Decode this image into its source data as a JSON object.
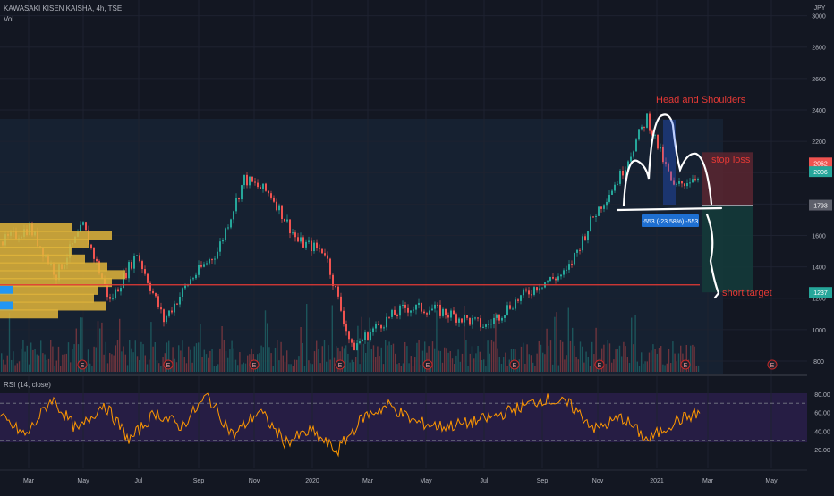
{
  "header": {
    "symbol_line": "KAWASAKI KISEN KAISHA, 4h, TSE",
    "volume_label": "Vol",
    "currency": "JPY",
    "rsi_label": "RSI (14, close)"
  },
  "colors": {
    "background": "#131722",
    "grid": "#1e2230",
    "candle_up": "#26a69a",
    "candle_down": "#ef5350",
    "vol_profile": "#e2b53b",
    "vol_profile_blue": "#2196f3",
    "support_line": "#e53935",
    "annotation_text": "#e53935",
    "rsi_line": "#ff9800",
    "rsi_band": "#2a1f4a",
    "text": "#b2b5be"
  },
  "price_axis": {
    "ticks": [
      "3000",
      "2800",
      "2600",
      "2400",
      "2200",
      "2000",
      "1800",
      "1600",
      "1400",
      "1200",
      "1000",
      "800"
    ],
    "min": 720,
    "max": 3100
  },
  "price_labels": [
    {
      "text": "2062",
      "value": 2062,
      "color": "#ef5350"
    },
    {
      "text": "2006",
      "value": 2006,
      "color": "#26a69a"
    },
    {
      "text": "1793",
      "value": 1793,
      "color": "#5d606b"
    },
    {
      "text": "1237",
      "value": 1237,
      "color": "#26a69a"
    }
  ],
  "rsi_axis": {
    "ticks": [
      "80.00",
      "60.00",
      "40.00",
      "20.00"
    ],
    "upper_band": 70,
    "lower_band": 30
  },
  "time_axis": [
    "Mar",
    "May",
    "Jul",
    "Sep",
    "Nov",
    "2020",
    "Mar",
    "May",
    "Jul",
    "Sep",
    "Nov",
    "2021",
    "Mar",
    "May"
  ],
  "annotations": {
    "head_and_shoulders": "Head and Shoulders",
    "stop_loss": "stop loss",
    "short_target": "short target",
    "measure_label": "-553 (-23.58%) -553"
  },
  "earnings_marker": "E",
  "chart_data": {
    "type": "candlestick",
    "title": "KAWASAKI KISEN KAISHA, 4h, TSE",
    "ylabel": "JPY",
    "ylim": [
      720,
      3100
    ],
    "support_level": 1285,
    "neckline": 1793,
    "stop_loss": 2062,
    "entry": 1793,
    "short_target": 1237,
    "price_path": [
      {
        "x": "2019-02",
        "y": 1560
      },
      {
        "x": "2019-03",
        "y": 1650
      },
      {
        "x": "2019-04",
        "y": 1350
      },
      {
        "x": "2019-05",
        "y": 1660
      },
      {
        "x": "2019-06",
        "y": 1180
      },
      {
        "x": "2019-07",
        "y": 1490
      },
      {
        "x": "2019-08",
        "y": 1060
      },
      {
        "x": "2019-09",
        "y": 1320
      },
      {
        "x": "2019-10",
        "y": 1500
      },
      {
        "x": "2019-11",
        "y": 1960
      },
      {
        "x": "2019-12",
        "y": 1860
      },
      {
        "x": "2020-01",
        "y": 1560
      },
      {
        "x": "2020-02",
        "y": 1500
      },
      {
        "x": "2020-03",
        "y": 880
      },
      {
        "x": "2020-04",
        "y": 1030
      },
      {
        "x": "2020-05",
        "y": 1140
      },
      {
        "x": "2020-06",
        "y": 1130
      },
      {
        "x": "2020-07",
        "y": 1080
      },
      {
        "x": "2020-08",
        "y": 1020
      },
      {
        "x": "2020-09",
        "y": 1170
      },
      {
        "x": "2020-10",
        "y": 1290
      },
      {
        "x": "2020-11",
        "y": 1360
      },
      {
        "x": "2020-12",
        "y": 1720
      },
      {
        "x": "2021-01",
        "y": 1980
      },
      {
        "x": "2021-01b",
        "y": 2350
      },
      {
        "x": "2021-02",
        "y": 1900
      },
      {
        "x": "2021-02b",
        "y": 2000
      }
    ],
    "volume_profile_bins": [
      {
        "price": 1650,
        "volume": 80
      },
      {
        "price": 1600,
        "volume": 125
      },
      {
        "price": 1550,
        "volume": 100
      },
      {
        "price": 1500,
        "volume": 80
      },
      {
        "price": 1450,
        "volume": 95
      },
      {
        "price": 1400,
        "volume": 120
      },
      {
        "price": 1350,
        "volume": 140
      },
      {
        "price": 1300,
        "volume": 125
      },
      {
        "price": 1250,
        "volume": 110
      },
      {
        "price": 1200,
        "volume": 105
      },
      {
        "price": 1150,
        "volume": 118
      },
      {
        "price": 1100,
        "volume": 65
      }
    ],
    "rsi": {
      "name": "RSI (14, close)",
      "ylim": [
        0,
        100
      ],
      "values": [
        55,
        35,
        75,
        40,
        70,
        30,
        60,
        45,
        78,
        35,
        62,
        28,
        40,
        18,
        55,
        68,
        50,
        45,
        48,
        55,
        65,
        75,
        68,
        42,
        55,
        30,
        50,
        60
      ]
    }
  }
}
